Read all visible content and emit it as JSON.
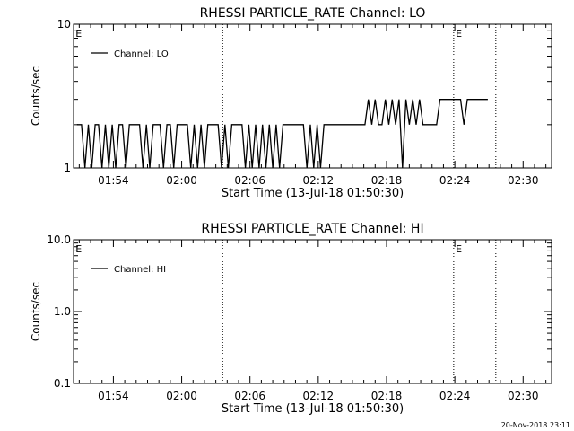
{
  "footer": {
    "timestamp": "20-Nov-2018 23:11"
  },
  "chart_data": [
    {
      "type": "line",
      "title": "RHESSI PARTICLE_RATE Channel: LO",
      "xlabel": "Start Time (13-Jul-18 01:50:30)",
      "ylabel": "Counts/sec",
      "yscale": "log",
      "ylim": [
        1,
        10
      ],
      "yticks": [
        {
          "v": 1,
          "label": "1"
        },
        {
          "v": 10,
          "label": "10"
        }
      ],
      "xlim_minutes": [
        110.5,
        152.5
      ],
      "xticks": [
        {
          "v": 114,
          "label": "01:54"
        },
        {
          "v": 120,
          "label": "02:00"
        },
        {
          "v": 126,
          "label": "02:06"
        },
        {
          "v": 132,
          "label": "02:12"
        },
        {
          "v": 138,
          "label": "02:18"
        },
        {
          "v": 144,
          "label": "02:24"
        },
        {
          "v": 150,
          "label": "02:30"
        }
      ],
      "event_lines_minutes": [
        123.6,
        143.9,
        147.6
      ],
      "event_markers": [
        {
          "v": 110.6,
          "label": "E"
        },
        {
          "v": 144.0,
          "label": "E"
        }
      ],
      "grid": false,
      "legend": {
        "position": "top-left"
      },
      "series": [
        {
          "name": "Channel: LO",
          "x": [
            110.8,
            111.2,
            111.5,
            111.8,
            112.1,
            112.4,
            112.7,
            113.0,
            113.3,
            113.6,
            113.9,
            114.2,
            114.5,
            114.8,
            115.1,
            115.4,
            115.7,
            116.0,
            116.3,
            116.6,
            116.9,
            117.2,
            117.5,
            117.8,
            118.1,
            118.4,
            118.7,
            119.0,
            119.3,
            119.6,
            119.9,
            120.2,
            120.5,
            120.8,
            121.1,
            121.4,
            121.7,
            122.0,
            122.3,
            122.6,
            122.9,
            123.2,
            123.5,
            123.8,
            124.1,
            124.4,
            124.7,
            125.0,
            125.3,
            125.6,
            125.9,
            126.2,
            126.5,
            126.8,
            127.1,
            127.4,
            127.7,
            128.0,
            128.3,
            128.6,
            128.9,
            129.2,
            129.5,
            129.8,
            130.1,
            130.4,
            130.7,
            131.0,
            131.3,
            131.6,
            131.9,
            132.2,
            132.5,
            132.8,
            133.1,
            133.4,
            133.7,
            134.0,
            134.3,
            134.6,
            134.9,
            135.2,
            135.5,
            135.8,
            136.1,
            136.4,
            136.7,
            137.0,
            137.3,
            137.6,
            137.9,
            138.2,
            138.5,
            138.8,
            139.1,
            139.4,
            139.7,
            140.0,
            140.3,
            140.6,
            140.9,
            141.2,
            141.5,
            141.8,
            142.1,
            142.4,
            142.7,
            143.0,
            143.3,
            143.6,
            143.9,
            144.2,
            144.5,
            144.8,
            145.1,
            145.4,
            145.7,
            146.0,
            146.3,
            146.6,
            146.9
          ],
          "y": [
            2,
            2,
            1,
            2,
            1,
            2,
            2,
            1,
            2,
            1,
            2,
            1,
            2,
            2,
            1,
            2,
            2,
            2,
            2,
            1,
            2,
            1,
            2,
            2,
            2,
            1,
            2,
            2,
            1,
            2,
            2,
            2,
            2,
            1,
            2,
            1,
            2,
            1,
            2,
            2,
            2,
            2,
            1,
            2,
            1,
            2,
            2,
            2,
            2,
            1,
            2,
            1,
            2,
            1,
            2,
            1,
            2,
            1,
            2,
            1,
            2,
            2,
            2,
            2,
            2,
            2,
            2,
            1,
            2,
            1,
            2,
            1,
            2,
            2,
            2,
            2,
            2,
            2,
            2,
            2,
            2,
            2,
            2,
            2,
            2,
            3,
            2,
            3,
            2,
            2,
            3,
            2,
            3,
            2,
            3,
            1,
            3,
            2,
            3,
            2,
            3,
            2,
            2,
            2,
            2,
            2,
            3,
            3,
            3,
            3,
            3,
            3,
            3,
            2,
            3,
            3,
            3,
            3,
            3,
            3,
            3
          ],
          "color": "#000000"
        }
      ]
    },
    {
      "type": "line",
      "title": "RHESSI PARTICLE_RATE Channel: HI",
      "xlabel": "Start Time (13-Jul-18 01:50:30)",
      "ylabel": "Counts/sec",
      "yscale": "log",
      "ylim": [
        0.1,
        10
      ],
      "yticks": [
        {
          "v": 0.1,
          "label": "0.1"
        },
        {
          "v": 1,
          "label": "1.0"
        },
        {
          "v": 10,
          "label": "10.0"
        }
      ],
      "xlim_minutes": [
        110.5,
        152.5
      ],
      "xticks": [
        {
          "v": 114,
          "label": "01:54"
        },
        {
          "v": 120,
          "label": "02:00"
        },
        {
          "v": 126,
          "label": "02:06"
        },
        {
          "v": 132,
          "label": "02:12"
        },
        {
          "v": 138,
          "label": "02:18"
        },
        {
          "v": 144,
          "label": "02:24"
        },
        {
          "v": 150,
          "label": "02:30"
        }
      ],
      "event_lines_minutes": [
        123.6,
        143.9,
        147.6
      ],
      "event_markers": [
        {
          "v": 110.6,
          "label": "E"
        },
        {
          "v": 144.0,
          "label": "E"
        }
      ],
      "grid": false,
      "legend": {
        "position": "top-left"
      },
      "series": [
        {
          "name": "Channel: HI",
          "x": [],
          "y": [],
          "color": "#000000"
        }
      ]
    }
  ]
}
